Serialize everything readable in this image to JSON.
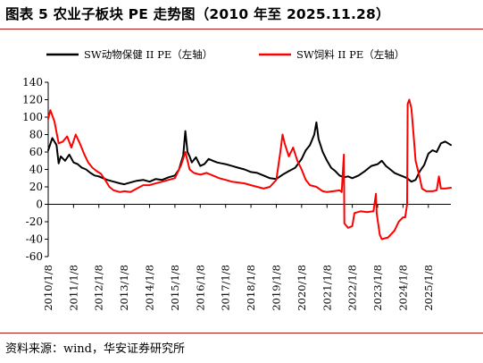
{
  "figure_title": "图表 5  农业子板块 PE 走势图（2010 年至 2025.11.28）",
  "source_note": "资料来源：wind，华安证券研究所",
  "chart_data": {
    "type": "line",
    "title": "图表 5  农业子板块 PE 走势图（2010 年至 2025.11.28）",
    "xlabel": "",
    "ylabel": "",
    "ylim": [
      -60,
      140
    ],
    "yticks": [
      -60,
      -40,
      -20,
      0,
      20,
      40,
      60,
      80,
      100,
      120,
      140
    ],
    "ytick_labels": [
      "-60",
      "-40",
      "-20",
      "0",
      "20",
      "40",
      "60",
      "80",
      "100",
      "120",
      "140"
    ],
    "xlim": [
      "2010/1/8",
      "2025/11/28"
    ],
    "xtick_labels": [
      "2010/1/8",
      "2011/1/8",
      "2012/1/8",
      "2013/1/8",
      "2014/1/8",
      "2015/1/8",
      "2016/1/8",
      "2017/1/8",
      "2018/1/8",
      "2019/1/8",
      "2020/1/8",
      "2021/1/8",
      "2022/1/8",
      "2023/1/8",
      "2024/1/8",
      "2025/1/8"
    ],
    "grid": false,
    "legend_position": "top",
    "series": [
      {
        "name": "SW动物保健 II PE（左轴）",
        "color": "#000000",
        "points": [
          [
            "2010/1/8",
            62
          ],
          [
            "2010/3/8",
            76
          ],
          [
            "2010/5/8",
            68
          ],
          [
            "2010/6/8",
            47
          ],
          [
            "2010/7/8",
            55
          ],
          [
            "2010/9/8",
            50
          ],
          [
            "2010/11/8",
            57
          ],
          [
            "2011/1/8",
            48
          ],
          [
            "2011/3/8",
            46
          ],
          [
            "2011/5/8",
            42
          ],
          [
            "2011/7/8",
            40
          ],
          [
            "2011/9/8",
            36
          ],
          [
            "2011/11/8",
            33
          ],
          [
            "2012/1/8",
            32
          ],
          [
            "2012/3/8",
            30
          ],
          [
            "2012/5/8",
            28
          ],
          [
            "2012/8/8",
            26
          ],
          [
            "2012/11/8",
            24
          ],
          [
            "2013/1/8",
            23
          ],
          [
            "2013/4/8",
            25
          ],
          [
            "2013/7/8",
            27
          ],
          [
            "2013/10/8",
            28
          ],
          [
            "2014/1/8",
            26
          ],
          [
            "2014/4/8",
            29
          ],
          [
            "2014/7/8",
            28
          ],
          [
            "2014/10/8",
            31
          ],
          [
            "2015/1/8",
            33
          ],
          [
            "2015/3/8",
            40
          ],
          [
            "2015/5/8",
            56
          ],
          [
            "2015/6/8",
            84
          ],
          [
            "2015/7/8",
            60
          ],
          [
            "2015/8/8",
            55
          ],
          [
            "2015/9/8",
            48
          ],
          [
            "2015/11/8",
            54
          ],
          [
            "2016/1/8",
            44
          ],
          [
            "2016/3/8",
            46
          ],
          [
            "2016/5/8",
            52
          ],
          [
            "2016/7/8",
            50
          ],
          [
            "2016/9/8",
            48
          ],
          [
            "2016/11/8",
            47
          ],
          [
            "2017/1/8",
            46
          ],
          [
            "2017/4/8",
            44
          ],
          [
            "2017/7/8",
            42
          ],
          [
            "2017/10/8",
            40
          ],
          [
            "2018/1/8",
            37
          ],
          [
            "2018/4/8",
            36
          ],
          [
            "2018/7/8",
            33
          ],
          [
            "2018/10/8",
            30
          ],
          [
            "2019/1/8",
            29
          ],
          [
            "2019/4/8",
            34
          ],
          [
            "2019/7/8",
            38
          ],
          [
            "2019/10/8",
            42
          ],
          [
            "2020/1/8",
            52
          ],
          [
            "2020/3/8",
            62
          ],
          [
            "2020/5/8",
            68
          ],
          [
            "2020/7/8",
            80
          ],
          [
            "2020/8/8",
            94
          ],
          [
            "2020/9/8",
            75
          ],
          [
            "2020/11/8",
            60
          ],
          [
            "2021/1/8",
            50
          ],
          [
            "2021/3/8",
            42
          ],
          [
            "2021/5/8",
            38
          ],
          [
            "2021/7/8",
            33
          ],
          [
            "2021/9/8",
            31
          ],
          [
            "2021/11/8",
            32
          ],
          [
            "2022/1/8",
            30
          ],
          [
            "2022/4/8",
            33
          ],
          [
            "2022/7/8",
            38
          ],
          [
            "2022/10/8",
            44
          ],
          [
            "2023/1/8",
            46
          ],
          [
            "2023/3/8",
            50
          ],
          [
            "2023/5/8",
            44
          ],
          [
            "2023/7/8",
            40
          ],
          [
            "2023/9/8",
            36
          ],
          [
            "2023/11/8",
            34
          ],
          [
            "2024/1/8",
            32
          ],
          [
            "2024/3/8",
            30
          ],
          [
            "2024/5/8",
            26
          ],
          [
            "2024/7/8",
            28
          ],
          [
            "2024/9/8",
            38
          ],
          [
            "2024/11/8",
            45
          ],
          [
            "2025/1/8",
            58
          ],
          [
            "2025/3/8",
            62
          ],
          [
            "2025/5/8",
            60
          ],
          [
            "2025/7/8",
            70
          ],
          [
            "2025/9/8",
            72
          ],
          [
            "2025/11/28",
            68
          ]
        ]
      },
      {
        "name": "SW饲料 II PE（左轴）",
        "color": "#ff0000",
        "points": [
          [
            "2010/1/8",
            98
          ],
          [
            "2010/2/8",
            108
          ],
          [
            "2010/4/8",
            95
          ],
          [
            "2010/6/8",
            70
          ],
          [
            "2010/8/8",
            72
          ],
          [
            "2010/10/8",
            78
          ],
          [
            "2010/12/8",
            65
          ],
          [
            "2011/2/8",
            80
          ],
          [
            "2011/4/8",
            70
          ],
          [
            "2011/6/8",
            58
          ],
          [
            "2011/8/8",
            48
          ],
          [
            "2011/10/8",
            42
          ],
          [
            "2011/12/8",
            38
          ],
          [
            "2012/2/8",
            35
          ],
          [
            "2012/4/8",
            28
          ],
          [
            "2012/6/8",
            20
          ],
          [
            "2012/8/8",
            16
          ],
          [
            "2012/11/8",
            14
          ],
          [
            "2013/1/8",
            15
          ],
          [
            "2013/4/8",
            14
          ],
          [
            "2013/7/8",
            18
          ],
          [
            "2013/10/8",
            22
          ],
          [
            "2014/1/8",
            22
          ],
          [
            "2014/4/8",
            24
          ],
          [
            "2014/7/8",
            26
          ],
          [
            "2014/10/8",
            28
          ],
          [
            "2015/1/8",
            30
          ],
          [
            "2015/4/8",
            45
          ],
          [
            "2015/6/8",
            60
          ],
          [
            "2015/8/8",
            40
          ],
          [
            "2015/10/8",
            36
          ],
          [
            "2016/1/8",
            34
          ],
          [
            "2016/4/8",
            36
          ],
          [
            "2016/7/8",
            33
          ],
          [
            "2016/10/8",
            30
          ],
          [
            "2017/1/8",
            28
          ],
          [
            "2017/4/8",
            26
          ],
          [
            "2017/7/8",
            25
          ],
          [
            "2017/10/8",
            24
          ],
          [
            "2018/1/8",
            22
          ],
          [
            "2018/4/8",
            20
          ],
          [
            "2018/7/8",
            18
          ],
          [
            "2018/10/8",
            20
          ],
          [
            "2019/1/8",
            28
          ],
          [
            "2019/3/8",
            60
          ],
          [
            "2019/4/8",
            80
          ],
          [
            "2019/5/8",
            70
          ],
          [
            "2019/7/8",
            55
          ],
          [
            "2019/9/8",
            65
          ],
          [
            "2019/11/8",
            50
          ],
          [
            "2020/1/8",
            40
          ],
          [
            "2020/3/8",
            28
          ],
          [
            "2020/5/8",
            22
          ],
          [
            "2020/8/8",
            20
          ],
          [
            "2020/11/8",
            15
          ],
          [
            "2021/1/8",
            14
          ],
          [
            "2021/4/8",
            15
          ],
          [
            "2021/7/8",
            16
          ],
          [
            "2021/8/8",
            14
          ],
          [
            "2021/9/8",
            57
          ],
          [
            "2021/9/15",
            -22
          ],
          [
            "2021/11/8",
            -27
          ],
          [
            "2022/1/8",
            -25
          ],
          [
            "2022/2/8",
            -10
          ],
          [
            "2022/5/8",
            -8
          ],
          [
            "2022/8/8",
            -9
          ],
          [
            "2022/11/8",
            -8
          ],
          [
            "2022/12/15",
            12
          ],
          [
            "2022/12/25",
            -10
          ],
          [
            "2023/2/8",
            -35
          ],
          [
            "2023/3/8",
            -40
          ],
          [
            "2023/6/8",
            -38
          ],
          [
            "2023/9/8",
            -30
          ],
          [
            "2023/11/8",
            -20
          ],
          [
            "2024/1/8",
            -15
          ],
          [
            "2024/2/8",
            -15
          ],
          [
            "2024/3/8",
            0
          ],
          [
            "2024/3/15",
            115
          ],
          [
            "2024/4/8",
            120
          ],
          [
            "2024/5/8",
            110
          ],
          [
            "2024/6/8",
            80
          ],
          [
            "2024/7/8",
            50
          ],
          [
            "2024/8/8",
            40
          ],
          [
            "2024/9/8",
            30
          ],
          [
            "2024/10/8",
            18
          ],
          [
            "2024/12/8",
            15
          ],
          [
            "2025/3/8",
            15
          ],
          [
            "2025/5/8",
            16
          ],
          [
            "2025/6/8",
            32
          ],
          [
            "2025/7/8",
            18
          ],
          [
            "2025/9/8",
            18
          ],
          [
            "2025/11/28",
            19
          ]
        ]
      }
    ]
  }
}
